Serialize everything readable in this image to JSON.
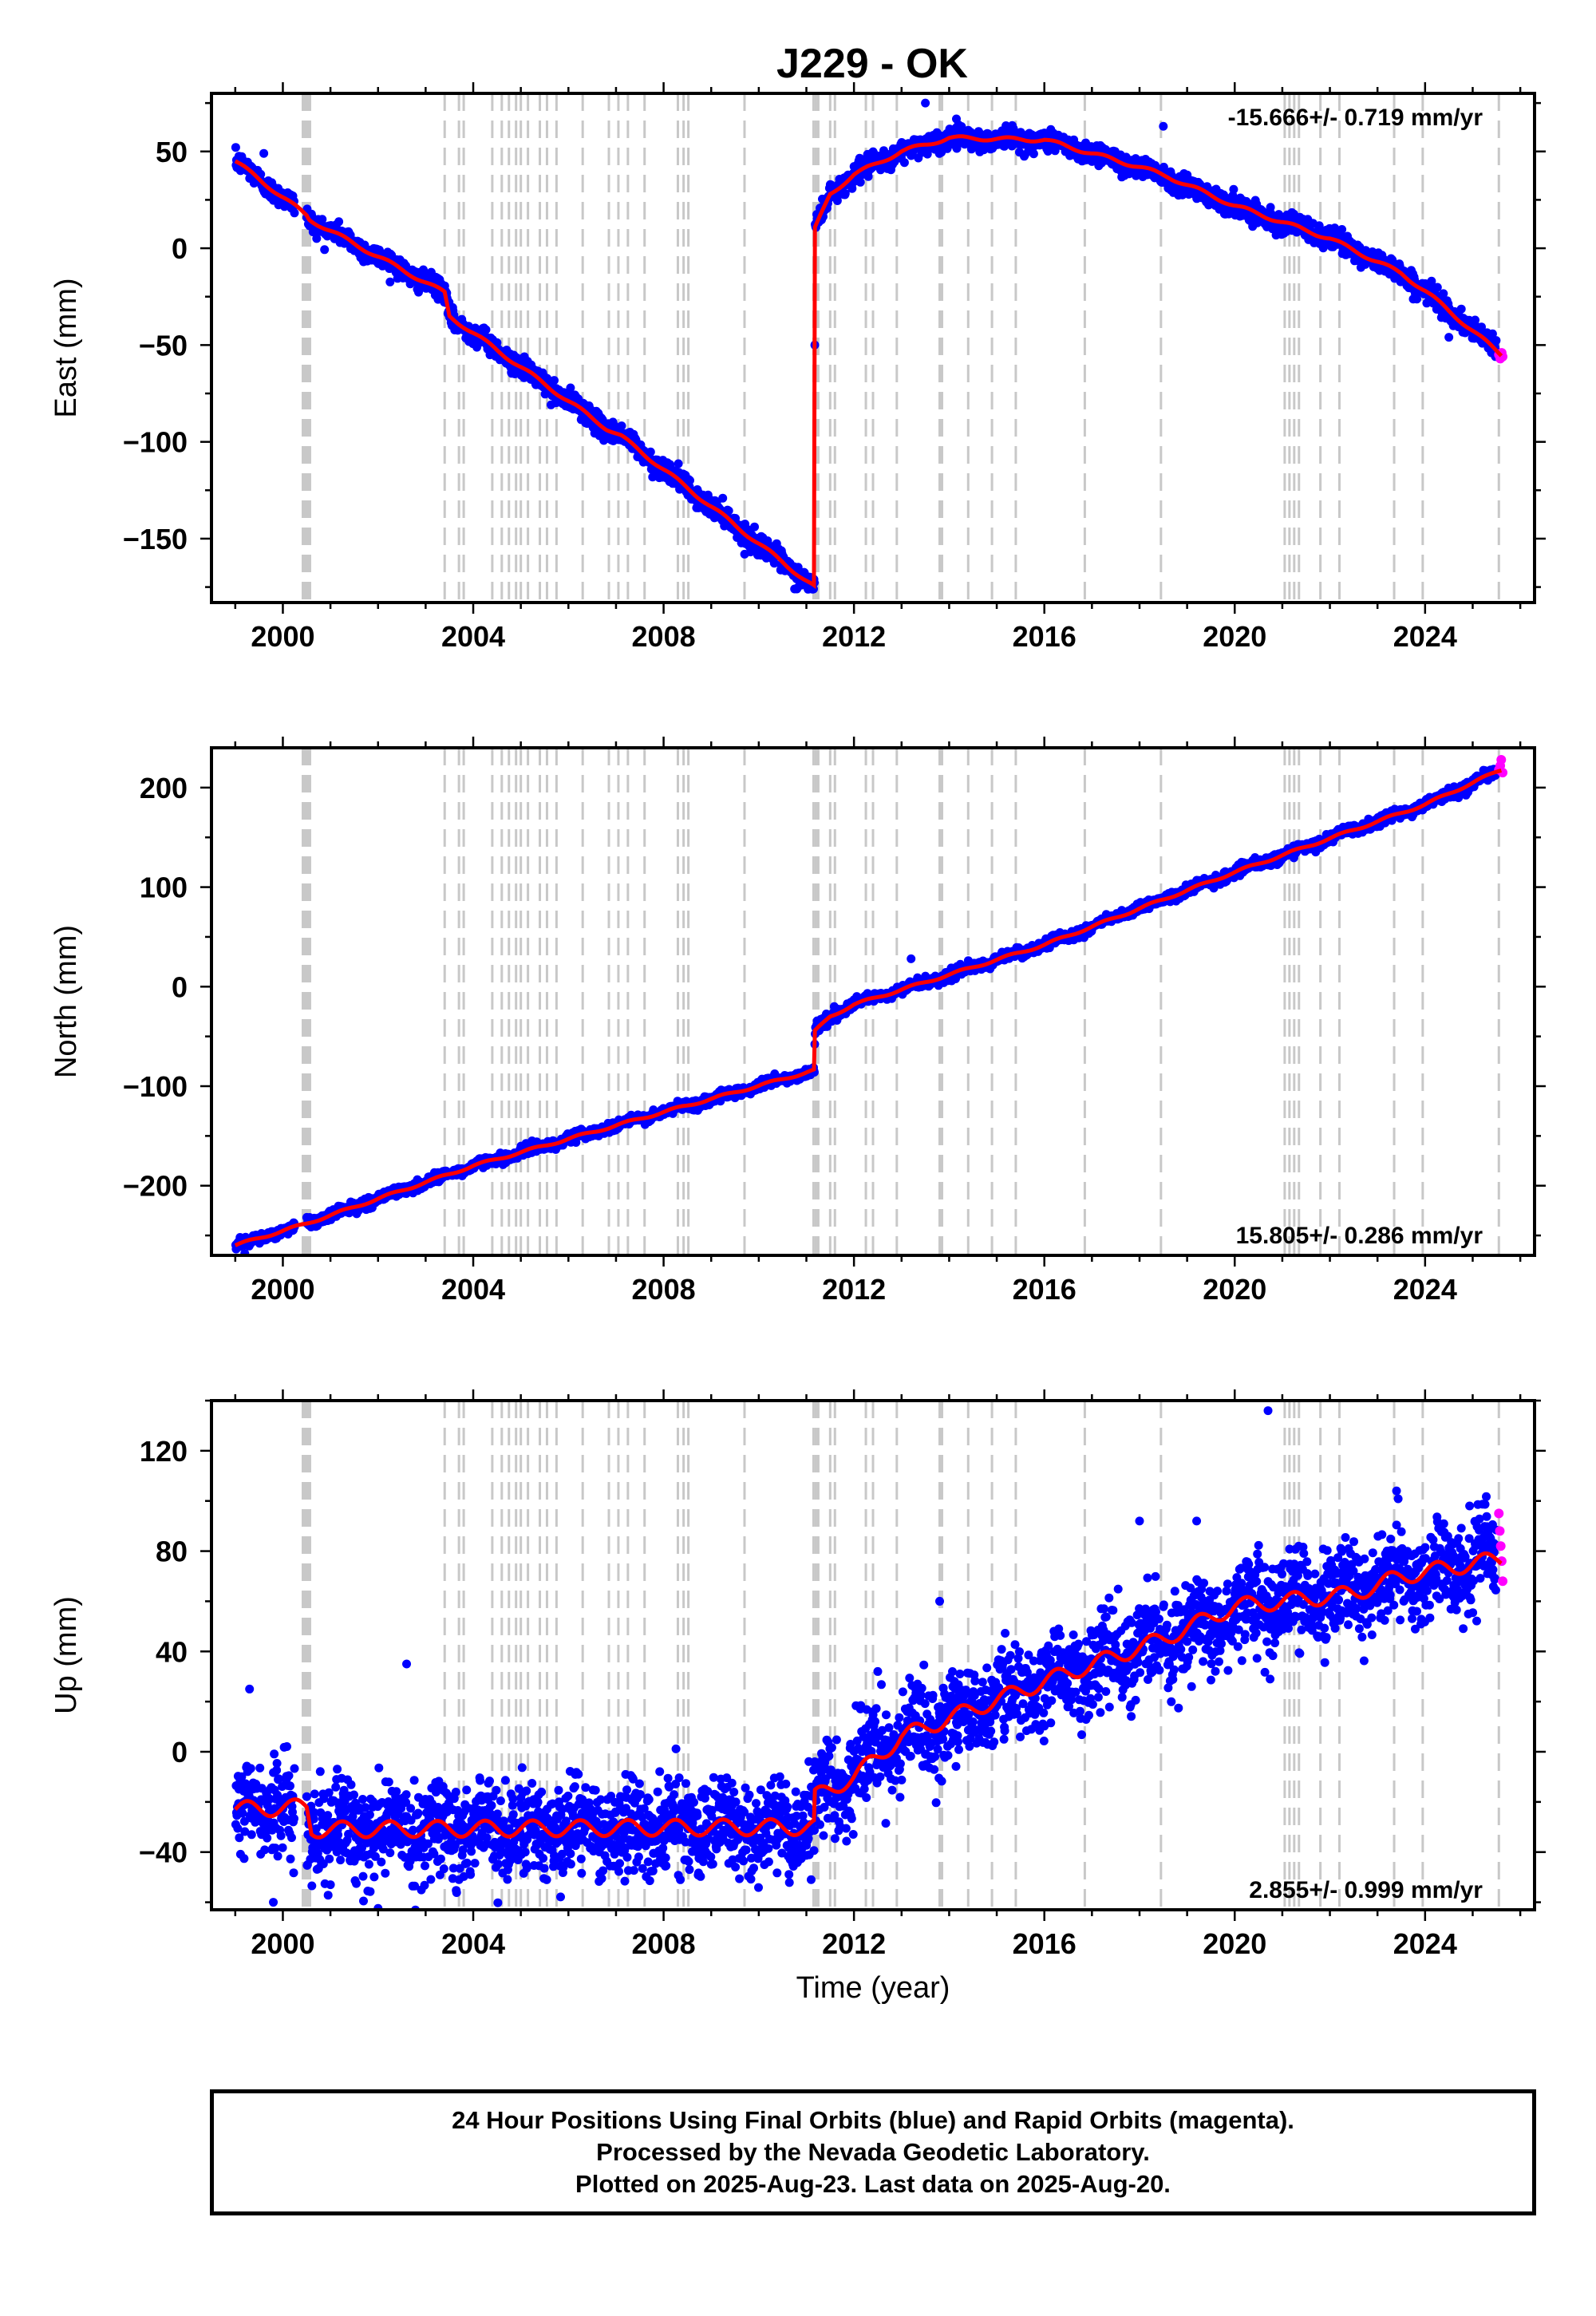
{
  "title": "J229 - OK",
  "colors": {
    "final": "#0000ff",
    "rapid": "#ff00ff",
    "model": "#ff0000",
    "steps": "#c8c8c8"
  },
  "footer": {
    "line1": "24 Hour Positions Using Final Orbits (blue) and Rapid Orbits (magenta).",
    "line2": "Processed by the Nevada Geodetic Laboratory.",
    "line3": "Plotted on 2025-Aug-23. Last data on 2025-Aug-20."
  },
  "chart_data": [
    {
      "type": "scatter",
      "component": "east",
      "ylabel": "East (mm)",
      "rate_text": "-15.666+/- 0.719 mm/yr",
      "rate_position": "top-right",
      "xlim": [
        1998.5,
        2026.3
      ],
      "ylim": [
        -183,
        80
      ],
      "xticks": [
        2000,
        2004,
        2008,
        2012,
        2016,
        2020,
        2024
      ],
      "xtick_labels": [
        "2000",
        "2004",
        "2008",
        "2012",
        "2016",
        "2020",
        "2024"
      ],
      "yticks": [
        50,
        0,
        -50,
        -100,
        -150
      ],
      "ytick_labels": [
        "50",
        "0",
        "−50",
        "−100",
        "−150"
      ],
      "minor_xstep": 1,
      "minor_ystep": 25,
      "model": [
        [
          1999.0,
          45
        ],
        [
          2000.5,
          17
        ],
        [
          2000.55,
          15
        ],
        [
          2003.4,
          -23
        ],
        [
          2003.5,
          -35
        ],
        [
          2006.8,
          -93
        ],
        [
          2007.1,
          -97
        ],
        [
          2011.17,
          -175
        ],
        [
          2011.18,
          10
        ],
        [
          2011.5,
          28
        ],
        [
          2012,
          38
        ],
        [
          2013,
          50
        ],
        [
          2014,
          57
        ],
        [
          2016,
          56
        ],
        [
          2018,
          42
        ],
        [
          2018.6,
          37
        ],
        [
          2020,
          22
        ],
        [
          2022,
          5
        ],
        [
          2023.5,
          -13
        ],
        [
          2024,
          -22
        ],
        [
          2025.6,
          -55
        ]
      ],
      "outliers": [
        [
          1999.6,
          49
        ],
        [
          2013.5,
          75
        ],
        [
          2018.5,
          63
        ],
        [
          2021.5,
          12
        ],
        [
          2024.5,
          -46
        ],
        [
          2010.8,
          -176
        ]
      ],
      "rapid": [
        [
          2025.55,
          -55
        ],
        [
          2025.58,
          -57
        ],
        [
          2025.61,
          -54
        ],
        [
          2025.63,
          -56
        ]
      ],
      "noise": 2.6,
      "seasonal": 1.2
    },
    {
      "type": "scatter",
      "component": "north",
      "ylabel": "North (mm)",
      "rate_text": "15.805+/- 0.286 mm/yr",
      "rate_position": "bottom-right",
      "xlim": [
        1998.5,
        2026.3
      ],
      "ylim": [
        -270,
        240
      ],
      "xticks": [
        2000,
        2004,
        2008,
        2012,
        2016,
        2020,
        2024
      ],
      "xtick_labels": [
        "2000",
        "2004",
        "2008",
        "2012",
        "2016",
        "2020",
        "2024"
      ],
      "yticks": [
        200,
        100,
        0,
        -100,
        -200
      ],
      "ytick_labels": [
        "200",
        "100",
        "0",
        "−100",
        "−200"
      ],
      "minor_xstep": 1,
      "minor_ystep": 50,
      "model": [
        [
          1999.0,
          -260
        ],
        [
          2000.5,
          -238
        ],
        [
          2004,
          -180
        ],
        [
          2008,
          -126
        ],
        [
          2011.17,
          -84
        ],
        [
          2011.18,
          -45
        ],
        [
          2011.5,
          -30
        ],
        [
          2012,
          -18
        ],
        [
          2016,
          42
        ],
        [
          2020,
          115
        ],
        [
          2024,
          183
        ],
        [
          2025.6,
          218
        ]
      ],
      "outliers": [
        [
          1999.1,
          -252
        ],
        [
          1999.2,
          -268
        ],
        [
          2013.2,
          28
        ]
      ],
      "rapid": [
        [
          2025.55,
          218
        ],
        [
          2025.58,
          222
        ],
        [
          2025.6,
          228
        ],
        [
          2025.63,
          215
        ]
      ],
      "noise": 2.4,
      "seasonal": 1.5
    },
    {
      "type": "scatter",
      "component": "up",
      "ylabel": "Up (mm)",
      "rate_text": "2.855+/- 0.999 mm/yr",
      "rate_position": "bottom-right",
      "xlim": [
        1998.5,
        2026.3
      ],
      "ylim": [
        -63,
        140
      ],
      "xticks": [
        2000,
        2004,
        2008,
        2012,
        2016,
        2020,
        2024
      ],
      "xtick_labels": [
        "2000",
        "2004",
        "2008",
        "2012",
        "2016",
        "2020",
        "2024"
      ],
      "yticks": [
        120,
        80,
        40,
        0,
        -40
      ],
      "ytick_labels": [
        "120",
        "80",
        "40",
        "0",
        "−40"
      ],
      "minor_xstep": 1,
      "minor_ystep": 20,
      "xlabel": "Time (year)",
      "model": [
        [
          1999.0,
          -23
        ],
        [
          2000.5,
          -22
        ],
        [
          2000.6,
          -31
        ],
        [
          2011.17,
          -30
        ],
        [
          2011.18,
          -18
        ],
        [
          2012,
          -10
        ],
        [
          2013,
          6
        ],
        [
          2016,
          28
        ],
        [
          2018.5,
          45
        ],
        [
          2020,
          58
        ],
        [
          2022.5,
          63
        ],
        [
          2023.5,
          70
        ],
        [
          2025.6,
          77
        ]
      ],
      "outliers": [
        [
          1999.3,
          25
        ],
        [
          2002.6,
          35
        ],
        [
          2020.7,
          136
        ],
        [
          2018,
          92
        ],
        [
          2019.2,
          92
        ],
        [
          2013.8,
          60
        ],
        [
          2023.4,
          104
        ],
        [
          2012.5,
          32
        ],
        [
          2001,
          -53
        ],
        [
          1999.8,
          -60
        ],
        [
          2011.1,
          -51
        ]
      ],
      "rapid": [
        [
          2025.55,
          95
        ],
        [
          2025.57,
          88
        ],
        [
          2025.59,
          82
        ],
        [
          2025.61,
          76
        ],
        [
          2025.63,
          68
        ]
      ],
      "noise": 9,
      "seasonal": 4
    }
  ],
  "step_epochs": [
    2000.42,
    2000.47,
    2000.52,
    2000.57,
    2003.4,
    2003.7,
    2003.8,
    2004.4,
    2004.6,
    2004.75,
    2004.9,
    2005.0,
    2005.15,
    2005.4,
    2005.55,
    2005.75,
    2006.3,
    2006.85,
    2007.05,
    2007.25,
    2007.6,
    2008.3,
    2008.42,
    2008.52,
    2009.7,
    2011.15,
    2011.2,
    2011.25,
    2011.5,
    2011.6,
    2012.25,
    2012.4,
    2012.9,
    2013.8,
    2013.85,
    2014.4,
    2014.9,
    2015.4,
    2016.85,
    2018.45,
    2021.05,
    2021.15,
    2021.25,
    2021.35,
    2021.8,
    2022.2,
    2023.35,
    2023.95,
    2025.55
  ]
}
